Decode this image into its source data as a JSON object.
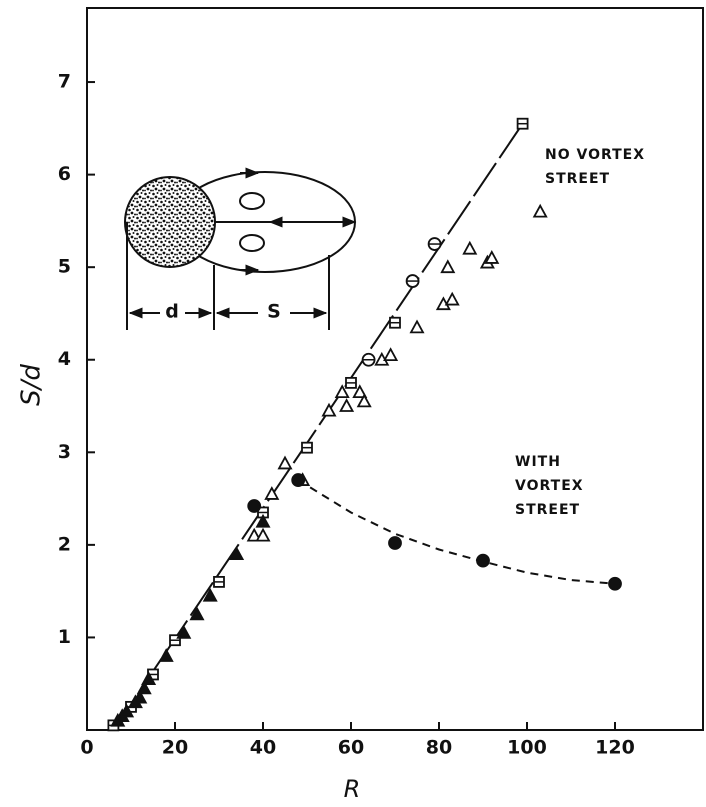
{
  "chart_data": {
    "type": "scatter",
    "x_label": "R",
    "y_label": "S/d",
    "xlim": [
      0,
      140
    ],
    "ylim": [
      0,
      7.8
    ],
    "xticks": [
      0,
      20,
      40,
      60,
      80,
      100,
      120
    ],
    "yticks": [
      1,
      2,
      3,
      4,
      5,
      6,
      7
    ],
    "series": [
      {
        "marker": "square",
        "filled": false,
        "color": "#111",
        "x": [
          99,
          70,
          60,
          50,
          40,
          30,
          20,
          15,
          10,
          6
        ],
        "values": [
          6.55,
          4.4,
          3.75,
          3.05,
          2.35,
          1.6,
          0.97,
          0.6,
          0.25,
          0.05
        ]
      },
      {
        "marker": "triangle",
        "filled": true,
        "color": "#111",
        "x": [
          7,
          8,
          9,
          11,
          12,
          13,
          14,
          18,
          22,
          25,
          28,
          34,
          40
        ],
        "values": [
          0.1,
          0.15,
          0.2,
          0.3,
          0.35,
          0.45,
          0.55,
          0.8,
          1.05,
          1.25,
          1.45,
          1.9,
          2.25
        ]
      },
      {
        "marker": "triangle",
        "filled": false,
        "color": "#111",
        "x": [
          38,
          40,
          42,
          45,
          49,
          55,
          58,
          59,
          62,
          63,
          67,
          69,
          75,
          81,
          82,
          83,
          87,
          91,
          92,
          103
        ],
        "values": [
          2.1,
          2.1,
          2.55,
          2.88,
          2.7,
          3.45,
          3.65,
          3.5,
          3.65,
          3.55,
          4.0,
          4.05,
          4.35,
          4.6,
          5.0,
          4.65,
          5.2,
          5.05,
          5.1,
          5.6
        ]
      },
      {
        "marker": "theta",
        "filled": false,
        "color": "#111",
        "x": [
          64,
          74,
          79
        ],
        "values": [
          4.0,
          4.85,
          5.25
        ]
      },
      {
        "marker": "circle",
        "filled": true,
        "color": "#111",
        "x": [
          38,
          48,
          70,
          90,
          120
        ],
        "values": [
          2.42,
          2.7,
          2.02,
          1.83,
          1.58
        ]
      }
    ],
    "lines": [
      {
        "style": "long-dash",
        "x": [
          6,
          99
        ],
        "values": [
          0,
          6.55
        ]
      },
      {
        "style": "dash",
        "x": [
          48,
          60,
          70,
          80,
          90,
          100,
          110,
          120
        ],
        "values": [
          2.7,
          2.35,
          2.12,
          1.95,
          1.82,
          1.7,
          1.62,
          1.58
        ]
      }
    ],
    "annotations": [
      {
        "lines": [
          "NO VORTEX",
          "STREET"
        ]
      },
      {
        "lines": [
          "WITH",
          "VORTEX",
          "STREET"
        ]
      }
    ],
    "inset": {
      "d_label": "d",
      "s_label": "S"
    }
  }
}
